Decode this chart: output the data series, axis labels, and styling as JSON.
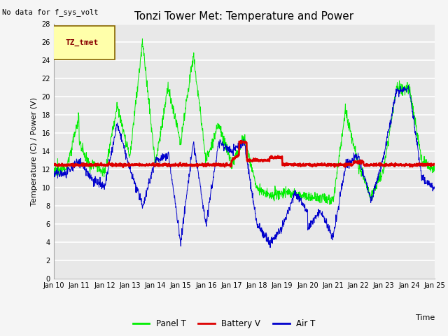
{
  "title": "Tonzi Tower Met: Temperature and Power",
  "no_data_text": "No data for f_sys_volt",
  "legend_box_text": "TZ_tmet",
  "ylabel": "Temperature (C) / Power (V)",
  "xlabel": "Time",
  "ylim": [
    0,
    28
  ],
  "xlim": [
    0,
    15
  ],
  "bg_color": "#e8e8e8",
  "grid_color": "#ffffff",
  "panel_color": "#00ee00",
  "battery_color": "#dd0000",
  "air_color": "#0000cc",
  "xtick_labels": [
    "Jan 10",
    "Jan 11",
    "Jan 12",
    "Jan 13",
    "Jan 14",
    "Jan 15",
    "Jan 16",
    "Jan 17",
    "Jan 18",
    "Jan 19",
    "Jan 20",
    "Jan 21",
    "Jan 22",
    "Jan 23",
    "Jan 24",
    "Jan 25"
  ],
  "ytick_values": [
    0,
    2,
    4,
    6,
    8,
    10,
    12,
    14,
    16,
    18,
    20,
    22,
    24,
    26,
    28
  ],
  "title_fontsize": 11,
  "axis_fontsize": 8,
  "tick_fontsize": 7,
  "fig_width": 6.4,
  "fig_height": 4.8,
  "fig_dpi": 100
}
